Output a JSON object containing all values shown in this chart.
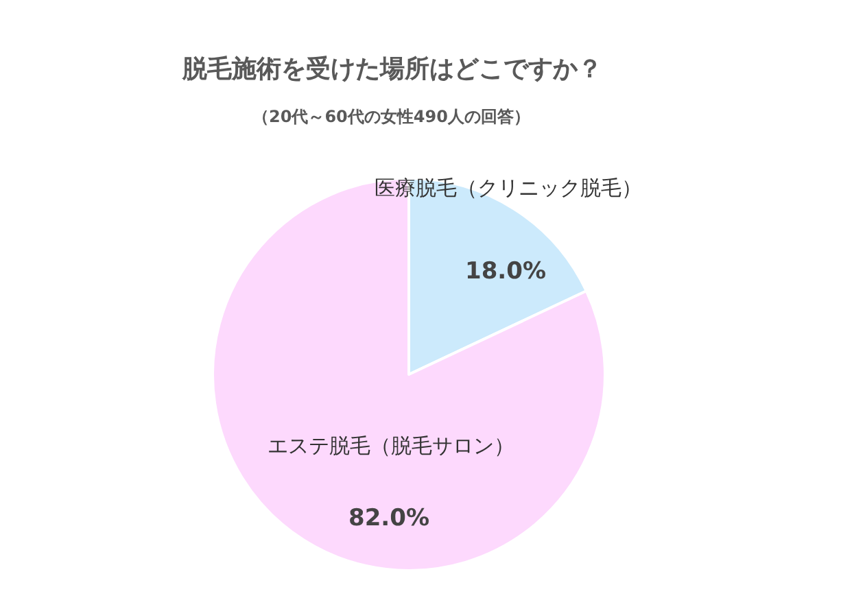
{
  "chart_data": {
    "type": "pie",
    "title": "脱毛施術を受けた場所はどこですか？",
    "subtitle": "（20代～60代の女性490人の回答）",
    "categories": [
      "医療脱毛（クリニック脱毛）",
      "エステ脱毛（脱毛サロン）"
    ],
    "values": [
      18.0,
      82.0
    ],
    "colors": [
      "#cceafc",
      "#fdd9fd"
    ],
    "value_labels": [
      "18.0%",
      "82.0%"
    ],
    "legend": false
  }
}
